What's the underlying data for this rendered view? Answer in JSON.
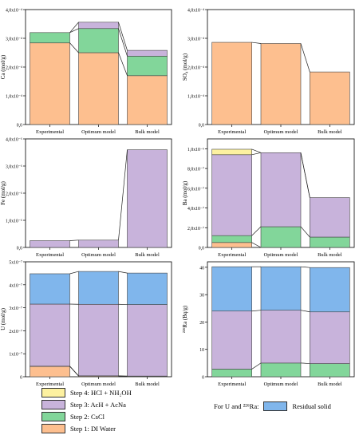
{
  "colors": {
    "step1": "#fdbf8f",
    "step2": "#82d69a",
    "step3": "#c8b3db",
    "step4": "#fdf1a0",
    "residual": "#80b6ec"
  },
  "legend": {
    "step4": "Step 4: HCl + NH₂OH",
    "step3": "Step 3: AcH + AcNa",
    "step2": "Step 2: CsCl",
    "step1": "Step 1: DI Water",
    "ura_prefix": "For U and ²²⁶Ra:",
    "residual": "Residual solid"
  },
  "chart_data": [
    {
      "id": "ca",
      "type": "bar",
      "stacked": true,
      "ylabel": "Ca (mol/g)",
      "categories": [
        "Experimental",
        "Optimum model",
        "Bulk model"
      ],
      "ylim": [
        0,
        0.0004
      ],
      "yticks": [
        "0,0",
        "1,0x10⁻⁴",
        "2,0x10⁻⁴",
        "3,0x10⁻⁴",
        "4,0x10⁻⁴"
      ],
      "series": [
        {
          "key": "step1",
          "values": [
            0.000284,
            0.00025,
            0.00017
          ]
        },
        {
          "key": "step2",
          "values": [
            3.6e-05,
            8.4e-05,
            6.8e-05
          ]
        },
        {
          "key": "step3",
          "values": [
            0.0,
            2.2e-05,
            2e-05
          ]
        }
      ]
    },
    {
      "id": "so4",
      "type": "bar",
      "stacked": true,
      "ylabel": "SO₄ (mol/g)",
      "categories": [
        "Experimental",
        "Optimum model",
        "Bulk model"
      ],
      "ylim": [
        0,
        0.0004
      ],
      "yticks": [
        "0,0",
        "1,0x10⁻⁴",
        "2,0x10⁻⁴",
        "3,0x10⁻⁴",
        "4,0x10⁻⁴"
      ],
      "series": [
        {
          "key": "step1",
          "values": [
            0.000286,
            0.000282,
            0.000183
          ]
        }
      ]
    },
    {
      "id": "fe",
      "type": "bar",
      "stacked": true,
      "ylabel": "Fe (mol/g)",
      "categories": [
        "Experimental",
        "Optimum model",
        "Bulk model"
      ],
      "ylim": [
        0,
        4e-06
      ],
      "yticks": [
        "0,0",
        "1,0x10⁻⁶",
        "2,0x10⁻⁶",
        "3,0x10⁻⁶",
        "4,0x10⁻⁶"
      ],
      "series": [
        {
          "key": "step3",
          "values": [
            2.5e-07,
            2.7e-07,
            3.6e-06
          ]
        }
      ]
    },
    {
      "id": "ba",
      "type": "bar",
      "stacked": true,
      "ylabel": "Ba (mol/g)",
      "categories": [
        "Experimental",
        "Optimum model",
        "Bulk model"
      ],
      "ylim": [
        0,
        1.1e-06
      ],
      "yticks": [
        "0,0",
        "2,0x10⁻⁷",
        "4,0x10⁻⁷",
        "6,0x10⁻⁷",
        "8,0x10⁻⁷",
        "1,0x10⁻⁶"
      ],
      "tickvals": [
        0,
        2e-07,
        4e-07,
        6e-07,
        8e-07,
        1e-06
      ],
      "series": [
        {
          "key": "step1",
          "values": [
            5e-08,
            0.0,
            0.0
          ]
        },
        {
          "key": "step2",
          "values": [
            7e-08,
            2.1e-07,
            1.05e-07
          ]
        },
        {
          "key": "step3",
          "values": [
            8.2e-07,
            7.5e-07,
            4e-07
          ]
        },
        {
          "key": "step4",
          "values": [
            5.5e-08,
            0.0,
            0.0
          ]
        }
      ]
    },
    {
      "id": "u",
      "type": "bar",
      "stacked": true,
      "ylabel": "U (mol/g)",
      "categories": [
        "Experimental",
        "Optimum model",
        "Bulk model"
      ],
      "ylim": [
        0,
        5e-07
      ],
      "yticks": [
        "0",
        "1x10⁻⁷",
        "2x10⁻⁷",
        "3x10⁻⁷",
        "4x10⁻⁷",
        "5x10⁻⁷"
      ],
      "series": [
        {
          "key": "step1",
          "values": [
            4.5e-08,
            3e-09,
            2e-09
          ]
        },
        {
          "key": "step2",
          "values": [
            1e-09,
            1e-09,
            1e-09
          ]
        },
        {
          "key": "step3",
          "values": [
            2.7e-07,
            3.11e-07,
            3.11e-07
          ]
        },
        {
          "key": "residual",
          "values": [
            1.32e-07,
            1.43e-07,
            1.37e-07
          ]
        }
      ]
    },
    {
      "id": "ra",
      "type": "bar",
      "stacked": true,
      "ylabel": "²²⁶Ra (Bq/g)",
      "categories": [
        "Experimental",
        "Optimum model",
        "Bulk model"
      ],
      "ylim": [
        0,
        42
      ],
      "yticks": [
        "0",
        "10",
        "20",
        "30",
        "40"
      ],
      "tickvals": [
        0,
        10,
        20,
        30,
        40
      ],
      "series": [
        {
          "key": "step2",
          "values": [
            2.8,
            5.0,
            4.8
          ]
        },
        {
          "key": "step3",
          "values": [
            21.2,
            19.3,
            18.9
          ]
        },
        {
          "key": "residual",
          "values": [
            16.2,
            15.9,
            16.2
          ]
        }
      ]
    }
  ]
}
